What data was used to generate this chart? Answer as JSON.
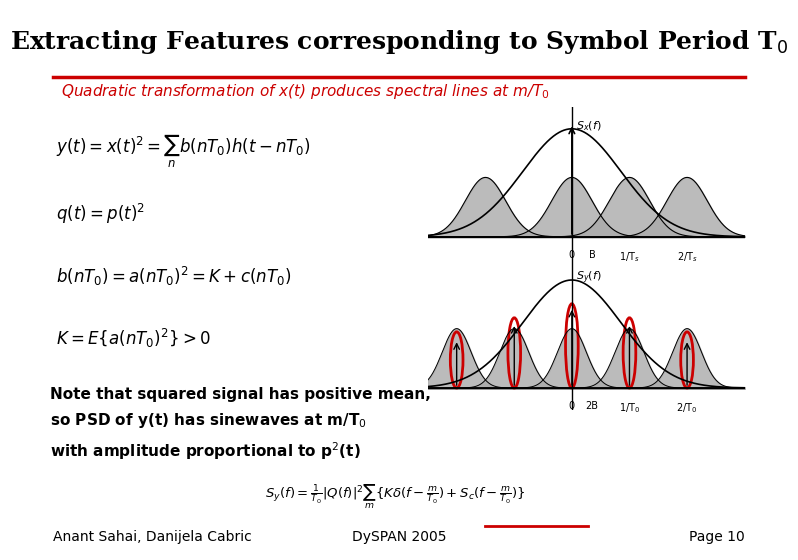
{
  "title": "Extracting Features corresponding to Symbol Period T$_0$",
  "title_fontsize": 18,
  "subtitle": "Quadratic transformation of x(t) produces spectral lines at m/T$_0$",
  "subtitle_color": "#cc0000",
  "subtitle_fontsize": 11,
  "bg_color": "#ffffff",
  "line_color": "#cc0000",
  "note_text": "Note that squared signal has positive mean,\nso PSD of y(t) has sinewaves at m/T$_0$\nwith amplitude proportional to p$^2$(t)",
  "note_fontsize": 11,
  "note_bold": true,
  "footer_left": "Anant Sahai, Danijela Cabric",
  "footer_center": "DySPAN 2005",
  "footer_right": "Page 10",
  "footer_fontsize": 10,
  "eq1": "$y(t) = x(t)^2 = \\sum_n b(nT_0) h(t - nT_0)$",
  "eq2": "$q(t) = p(t)^2$",
  "eq3": "$b(nT_0) = a(nT_0)^2 = K + c(nT_0)$",
  "eq4": "$K = E\\{a(nT_0)^2\\} > 0$",
  "eq_formula": "$S_y(f) = \\frac{1}{T_0}\\left|Q(f)\\right|^2\\sum_m \\{K\\delta(f - \\frac{m}{T_0}) + S_c(f - \\frac{m}{T_0})\\}$",
  "graph1_label": "$S_x(f)$",
  "graph2_label": "$S_y(f)$",
  "graph1_xticks": [
    "0",
    "B",
    "1/T$_s$",
    "2/T$_s$"
  ],
  "graph2_xticks": [
    "0",
    "2B",
    "1/T$_0$",
    "2/T$_0$"
  ],
  "gray_color": "#999999",
  "dark_gray": "#777777",
  "red_circle_color": "#cc0000"
}
